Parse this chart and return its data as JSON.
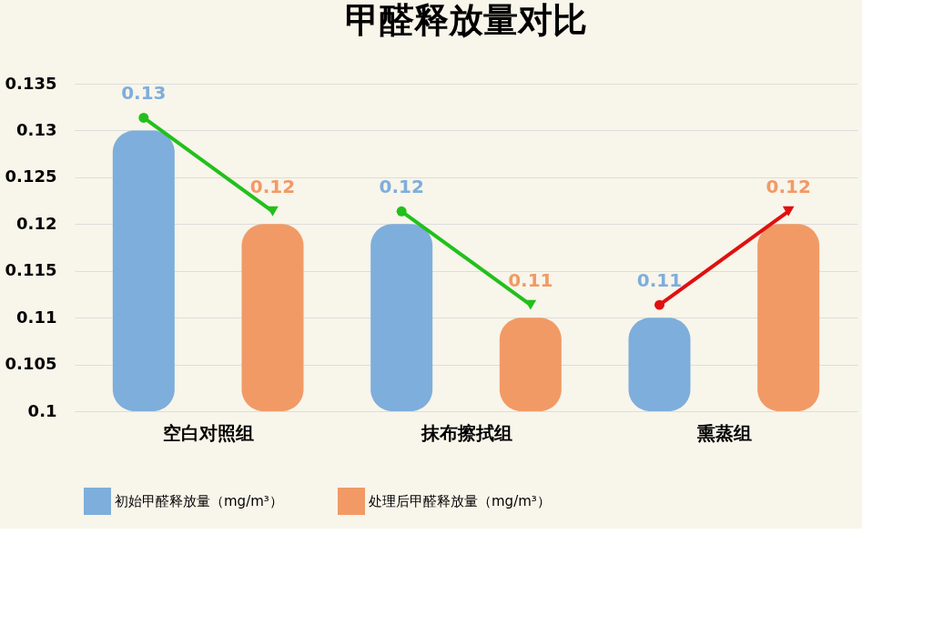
{
  "chart_data": {
    "type": "bar",
    "title": "甲醛释放量对比",
    "categories": [
      "空白对照组",
      "抹布擦拭组",
      "熏蒸组"
    ],
    "series": [
      {
        "name": "初始甲醛释放量（mg/m³）",
        "color": "#7eaedb",
        "values": [
          0.13,
          0.12,
          0.11
        ]
      },
      {
        "name": "处理后甲醛释放量（mg/m³）",
        "color": "#f19a66",
        "values": [
          0.12,
          0.11,
          0.12
        ]
      }
    ],
    "ylim": [
      0.1,
      0.135
    ],
    "yticks": [
      0.1,
      0.105,
      0.11,
      0.115,
      0.12,
      0.125,
      0.13,
      0.135
    ],
    "grid": "y",
    "legend": "bottom",
    "data_labels": true
  }
}
